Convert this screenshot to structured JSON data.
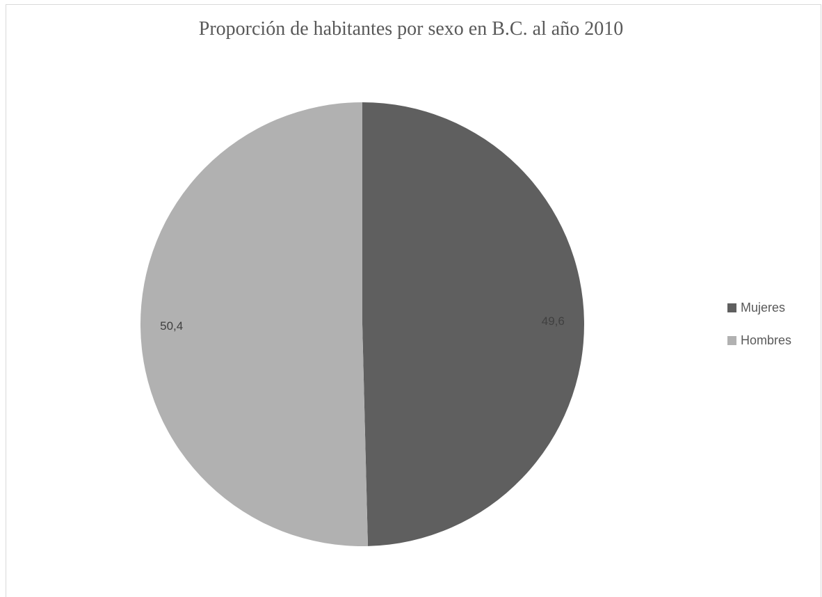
{
  "chart_data": {
    "type": "pie",
    "title": "Proporción de habitantes por sexo en B.C. al año 2010",
    "categories": [
      "Mujeres",
      "Hombres"
    ],
    "values": [
      49.6,
      50.4
    ],
    "value_labels": [
      "49,6",
      "50,4"
    ],
    "colors": [
      "#5f5f5f",
      "#b1b1b1"
    ],
    "start_angle_deg": 0,
    "direction": "clockwise",
    "legend_position": "right"
  }
}
